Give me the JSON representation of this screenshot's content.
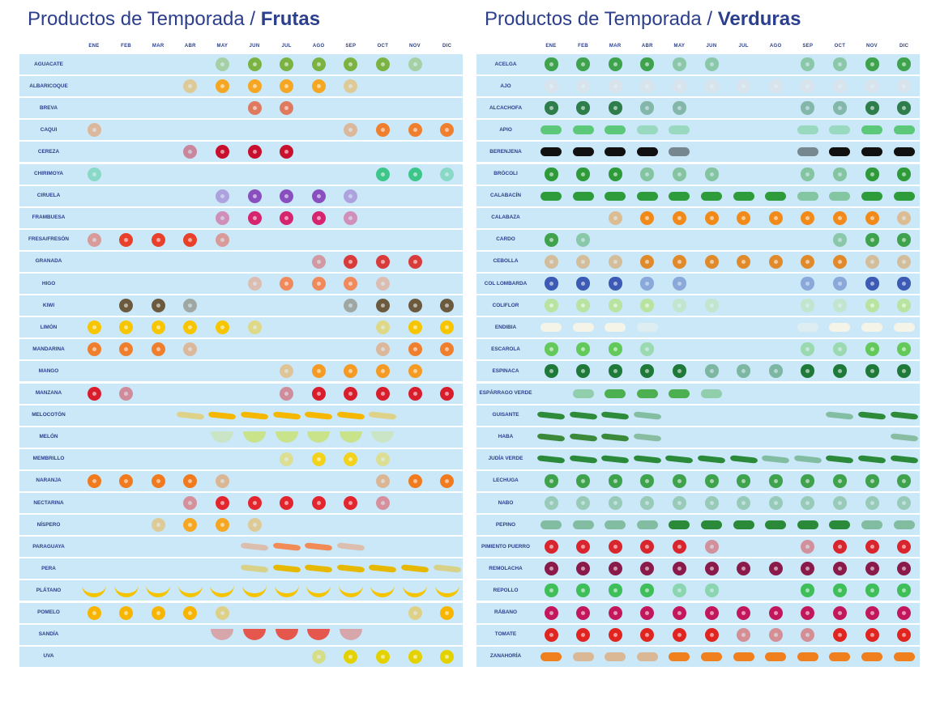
{
  "months": [
    "ENE",
    "FEB",
    "MAR",
    "ABR",
    "MAY",
    "JUN",
    "JUL",
    "AGO",
    "SEP",
    "OCT",
    "NOV",
    "DIC"
  ],
  "frutas": {
    "title_prefix": "Productos de Temporada / ",
    "title_bold": "Frutas",
    "items": [
      {
        "name": "AGUACATE",
        "icon": "avocado-icon",
        "color": "#7bb343",
        "months": [
          0,
          0,
          0,
          0,
          1,
          2,
          2,
          2,
          2,
          2,
          1,
          0
        ]
      },
      {
        "name": "ALBARICOQUE",
        "icon": "apricot-icon",
        "color": "#f5a623",
        "months": [
          0,
          0,
          0,
          1,
          2,
          2,
          2,
          2,
          1,
          0,
          0,
          0
        ]
      },
      {
        "name": "BREVA",
        "icon": "early-fig-icon",
        "color": "#e07a5f",
        "months": [
          0,
          0,
          0,
          0,
          0,
          2,
          2,
          0,
          0,
          0,
          0,
          0
        ]
      },
      {
        "name": "CAQUI",
        "icon": "persimmon-icon",
        "color": "#f07f2d",
        "months": [
          1,
          0,
          0,
          0,
          0,
          0,
          0,
          0,
          1,
          2,
          2,
          2
        ]
      },
      {
        "name": "CEREZA",
        "icon": "cherry-icon",
        "color": "#c8102e",
        "months": [
          0,
          0,
          0,
          1,
          2,
          2,
          2,
          0,
          0,
          0,
          0,
          0
        ]
      },
      {
        "name": "CHIRIMOYA",
        "icon": "cherimoya-icon",
        "color": "#3cc68a",
        "months": [
          1,
          0,
          0,
          0,
          0,
          0,
          0,
          0,
          0,
          2,
          2,
          1
        ]
      },
      {
        "name": "CIRUELA",
        "icon": "plum-icon",
        "color": "#8a4fbf",
        "months": [
          0,
          0,
          0,
          0,
          1,
          2,
          2,
          2,
          1,
          0,
          0,
          0
        ]
      },
      {
        "name": "FRAMBUESA",
        "icon": "raspberry-icon",
        "color": "#d6246e",
        "months": [
          0,
          0,
          0,
          0,
          1,
          2,
          2,
          2,
          1,
          0,
          0,
          0
        ]
      },
      {
        "name": "FRESA/FRESÓN",
        "icon": "strawberry-icon",
        "color": "#e8402a",
        "months": [
          1,
          2,
          2,
          2,
          1,
          0,
          0,
          0,
          0,
          0,
          0,
          0
        ]
      },
      {
        "name": "GRANADA",
        "icon": "pomegranate-icon",
        "color": "#d93a3a",
        "months": [
          0,
          0,
          0,
          0,
          0,
          0,
          0,
          1,
          2,
          2,
          2,
          0
        ]
      },
      {
        "name": "HIGO",
        "icon": "fig-icon",
        "color": "#f08a5d",
        "months": [
          0,
          0,
          0,
          0,
          0,
          1,
          2,
          2,
          2,
          1,
          0,
          0
        ]
      },
      {
        "name": "KIWI",
        "icon": "kiwi-icon",
        "color": "#6b5a3e",
        "months": [
          0,
          2,
          2,
          1,
          0,
          0,
          0,
          0,
          1,
          2,
          2,
          2
        ]
      },
      {
        "name": "LIMÓN",
        "icon": "lemon-icon",
        "color": "#f7c600",
        "months": [
          2,
          2,
          2,
          2,
          2,
          1,
          0,
          0,
          0,
          1,
          2,
          2
        ]
      },
      {
        "name": "MANDARINA",
        "icon": "tangerine-icon",
        "color": "#f07f2d",
        "months": [
          2,
          2,
          2,
          1,
          0,
          0,
          0,
          0,
          0,
          1,
          2,
          2
        ]
      },
      {
        "name": "MANGO",
        "icon": "mango-icon",
        "color": "#f59a23",
        "months": [
          0,
          0,
          0,
          0,
          0,
          0,
          1,
          2,
          2,
          2,
          2,
          0
        ]
      },
      {
        "name": "MANZANA",
        "icon": "apple-icon",
        "color": "#d81e2c",
        "months": [
          2,
          1,
          0,
          0,
          0,
          0,
          1,
          2,
          2,
          2,
          2,
          2
        ]
      },
      {
        "name": "MELOCOTÓN",
        "icon": "peach-icon",
        "color": "#f5b700",
        "months": [
          0,
          0,
          0,
          1,
          2,
          2,
          2,
          2,
          2,
          1,
          0,
          0
        ]
      },
      {
        "name": "MELÓN",
        "icon": "melon-icon",
        "color": "#c9e38a",
        "months": [
          0,
          0,
          0,
          0,
          1,
          2,
          2,
          2,
          2,
          1,
          0,
          0
        ]
      },
      {
        "name": "MEMBRILLO",
        "icon": "quince-icon",
        "color": "#f2d21b",
        "months": [
          0,
          0,
          0,
          0,
          0,
          0,
          1,
          2,
          2,
          1,
          0,
          0
        ]
      },
      {
        "name": "NARANJA",
        "icon": "orange-icon",
        "color": "#f07a1d",
        "months": [
          2,
          2,
          2,
          2,
          1,
          0,
          0,
          0,
          0,
          1,
          2,
          2
        ]
      },
      {
        "name": "NECTARINA",
        "icon": "nectarine-icon",
        "color": "#e3262e",
        "months": [
          0,
          0,
          0,
          1,
          2,
          2,
          2,
          2,
          2,
          1,
          0,
          0
        ]
      },
      {
        "name": "NÍSPERO",
        "icon": "loquat-icon",
        "color": "#f5a623",
        "months": [
          0,
          0,
          1,
          2,
          2,
          1,
          0,
          0,
          0,
          0,
          0,
          0
        ]
      },
      {
        "name": "PARAGUAYA",
        "icon": "flat-peach-icon",
        "color": "#f28b55",
        "months": [
          0,
          0,
          0,
          0,
          0,
          1,
          2,
          2,
          1,
          0,
          0,
          0
        ]
      },
      {
        "name": "PERA",
        "icon": "pear-icon",
        "color": "#e6b800",
        "months": [
          0,
          0,
          0,
          0,
          0,
          1,
          2,
          2,
          2,
          2,
          2,
          1
        ]
      },
      {
        "name": "PLÁTANO",
        "icon": "banana-icon",
        "color": "#f5c400",
        "months": [
          2,
          2,
          2,
          2,
          2,
          2,
          2,
          2,
          2,
          2,
          2,
          2
        ]
      },
      {
        "name": "POMELO",
        "icon": "grapefruit-icon",
        "color": "#f7b500",
        "months": [
          2,
          2,
          2,
          2,
          1,
          0,
          0,
          0,
          0,
          0,
          1,
          2
        ]
      },
      {
        "name": "SANDÍA",
        "icon": "watermelon-icon",
        "color": "#e5574d",
        "months": [
          0,
          0,
          0,
          0,
          1,
          2,
          2,
          2,
          1,
          0,
          0,
          0
        ]
      },
      {
        "name": "UVA",
        "icon": "grape-icon",
        "color": "#e3d200",
        "months": [
          0,
          0,
          0,
          0,
          0,
          0,
          0,
          1,
          2,
          2,
          2,
          2
        ]
      }
    ]
  },
  "verduras": {
    "title_prefix": "Productos de Temporada / ",
    "title_bold": "Verduras",
    "items": [
      {
        "name": "ACELGA",
        "icon": "chard-icon",
        "color": "#3fa34d",
        "months": [
          2,
          2,
          2,
          2,
          1,
          1,
          0,
          0,
          1,
          1,
          2,
          2
        ]
      },
      {
        "name": "AJO",
        "icon": "garlic-icon",
        "color": "#e8dede",
        "months": [
          1,
          1,
          1,
          1,
          1,
          1,
          1,
          1,
          1,
          1,
          1,
          1
        ]
      },
      {
        "name": "ALCACHOFA",
        "icon": "artichoke-icon",
        "color": "#2e7d4a",
        "months": [
          2,
          2,
          2,
          1,
          1,
          0,
          0,
          0,
          1,
          1,
          2,
          2
        ]
      },
      {
        "name": "APIO",
        "icon": "celery-icon",
        "color": "#5cc87a",
        "months": [
          2,
          2,
          2,
          1,
          1,
          0,
          0,
          0,
          1,
          1,
          2,
          2
        ]
      },
      {
        "name": "BERENJENA",
        "icon": "eggplant-icon",
        "color": "#111111",
        "months": [
          2,
          2,
          2,
          2,
          1,
          0,
          0,
          0,
          1,
          2,
          2,
          2
        ]
      },
      {
        "name": "BRÓCOLI",
        "icon": "broccoli-icon",
        "color": "#2f9a3a",
        "months": [
          2,
          2,
          2,
          1,
          1,
          1,
          0,
          0,
          1,
          1,
          2,
          2
        ]
      },
      {
        "name": "CALABACÍN",
        "icon": "zucchini-icon",
        "color": "#2e9c3a",
        "months": [
          2,
          2,
          2,
          2,
          2,
          2,
          2,
          2,
          1,
          1,
          2,
          2
        ]
      },
      {
        "name": "CALABAZA",
        "icon": "pumpkin-icon",
        "color": "#f28a1a",
        "months": [
          0,
          0,
          1,
          2,
          2,
          2,
          2,
          2,
          2,
          2,
          2,
          1
        ]
      },
      {
        "name": "CARDO",
        "icon": "cardoon-icon",
        "color": "#3fa34d",
        "months": [
          2,
          1,
          0,
          0,
          0,
          0,
          0,
          0,
          0,
          1,
          2,
          2
        ]
      },
      {
        "name": "CEBOLLA",
        "icon": "onion-icon",
        "color": "#e08a2c",
        "months": [
          1,
          1,
          1,
          2,
          2,
          2,
          2,
          2,
          2,
          2,
          1,
          1
        ]
      },
      {
        "name": "COL LOMBARDA",
        "icon": "red-cabbage-icon",
        "color": "#3d5bb5",
        "months": [
          2,
          2,
          2,
          1,
          1,
          0,
          0,
          0,
          1,
          1,
          2,
          2
        ]
      },
      {
        "name": "COLIFLOR",
        "icon": "cauliflower-icon",
        "color": "#b9e3a0",
        "months": [
          2,
          2,
          2,
          2,
          1,
          1,
          0,
          0,
          1,
          1,
          2,
          2
        ]
      },
      {
        "name": "ENDIBIA",
        "icon": "endive-icon",
        "color": "#f4f4e8",
        "months": [
          2,
          2,
          2,
          1,
          0,
          0,
          0,
          0,
          1,
          2,
          2,
          2
        ]
      },
      {
        "name": "ESCAROLA",
        "icon": "escarole-icon",
        "color": "#63c95a",
        "months": [
          2,
          2,
          2,
          1,
          0,
          0,
          0,
          0,
          1,
          1,
          2,
          2
        ]
      },
      {
        "name": "ESPINACA",
        "icon": "spinach-icon",
        "color": "#1f7a3a",
        "months": [
          2,
          2,
          2,
          2,
          2,
          1,
          1,
          1,
          2,
          2,
          2,
          2
        ]
      },
      {
        "name": "ESPÁRRAGO VERDE",
        "icon": "asparagus-icon",
        "color": "#4caf50",
        "months": [
          0,
          1,
          2,
          2,
          2,
          1,
          0,
          0,
          0,
          0,
          0,
          0
        ]
      },
      {
        "name": "GUISANTE",
        "icon": "pea-icon",
        "color": "#2e8b3a",
        "months": [
          2,
          2,
          2,
          1,
          0,
          0,
          0,
          0,
          0,
          1,
          2,
          2
        ]
      },
      {
        "name": "HABA",
        "icon": "broad-bean-icon",
        "color": "#3a8a3a",
        "months": [
          2,
          2,
          2,
          1,
          0,
          0,
          0,
          0,
          0,
          0,
          0,
          1
        ]
      },
      {
        "name": "JUDÍA VERDE",
        "icon": "green-bean-icon",
        "color": "#2a8a3a",
        "months": [
          2,
          2,
          2,
          2,
          2,
          2,
          2,
          1,
          1,
          2,
          2,
          2
        ]
      },
      {
        "name": "LECHUGA",
        "icon": "lettuce-icon",
        "color": "#3fa34d",
        "months": [
          2,
          2,
          2,
          2,
          2,
          2,
          2,
          2,
          2,
          2,
          2,
          2
        ]
      },
      {
        "name": "NABO",
        "icon": "turnip-icon",
        "color": "#5aa66a",
        "months": [
          1,
          1,
          1,
          1,
          1,
          1,
          1,
          1,
          1,
          1,
          1,
          1
        ]
      },
      {
        "name": "PEPINO",
        "icon": "cucumber-icon",
        "color": "#2a8a3a",
        "months": [
          1,
          1,
          1,
          1,
          2,
          2,
          2,
          2,
          2,
          2,
          1,
          1
        ]
      },
      {
        "name": "PIMIENTO PUERRO",
        "icon": "pepper-leek-icon",
        "color": "#d9262e",
        "months": [
          2,
          2,
          2,
          2,
          2,
          1,
          0,
          0,
          1,
          2,
          2,
          2
        ]
      },
      {
        "name": "REMOLACHA",
        "icon": "beetroot-icon",
        "color": "#8a1a4a",
        "months": [
          2,
          2,
          2,
          2,
          2,
          2,
          2,
          2,
          2,
          2,
          2,
          2
        ]
      },
      {
        "name": "REPOLLO",
        "icon": "cabbage-icon",
        "color": "#3fbf5a",
        "months": [
          2,
          2,
          2,
          2,
          1,
          1,
          0,
          0,
          2,
          2,
          2,
          2
        ]
      },
      {
        "name": "RÁBANO",
        "icon": "radish-icon",
        "color": "#c2185b",
        "months": [
          2,
          2,
          2,
          2,
          2,
          2,
          2,
          2,
          2,
          2,
          2,
          2
        ]
      },
      {
        "name": "TOMATE",
        "icon": "tomato-icon",
        "color": "#e0241f",
        "months": [
          2,
          2,
          2,
          2,
          2,
          2,
          1,
          1,
          1,
          2,
          2,
          2
        ]
      },
      {
        "name": "ZANAHORÍA",
        "icon": "carrot-icon",
        "color": "#f07f1d",
        "months": [
          2,
          1,
          1,
          1,
          2,
          2,
          2,
          2,
          2,
          2,
          2,
          2
        ]
      }
    ]
  }
}
